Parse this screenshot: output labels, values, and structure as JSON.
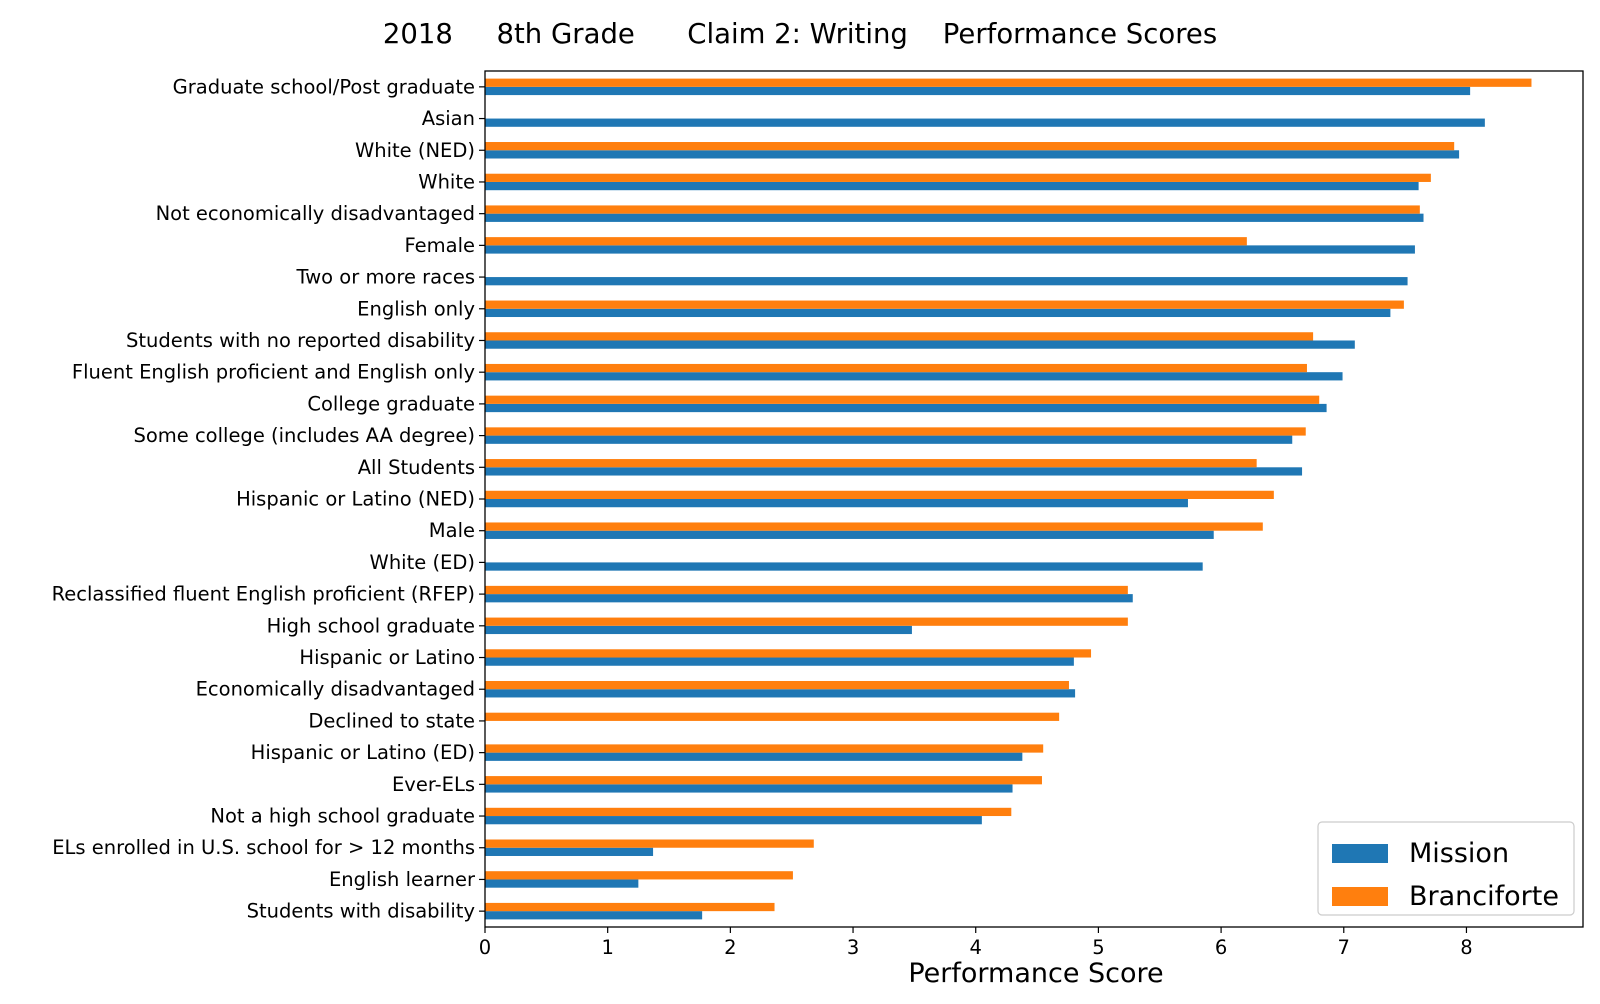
{
  "chart_data": {
    "type": "bar",
    "orientation": "horizontal",
    "title": "2018     8th Grade      Claim 2: Writing    Performance Scores",
    "xlabel": "Performance Score",
    "ylabel": "",
    "xlim": [
      0,
      8.95
    ],
    "xticks": [
      0,
      1,
      2,
      3,
      4,
      5,
      6,
      7,
      8
    ],
    "grid": false,
    "legend_position": "bottom-right",
    "categories": [
      "Graduate school/Post graduate",
      "Asian",
      "White (NED)",
      "White",
      "Not economically disadvantaged",
      "Female",
      "Two or more races",
      "English only",
      "Students with no reported disability",
      "Fluent English proficient and English only",
      "College graduate",
      "Some college (includes AA degree)",
      "All Students",
      "Hispanic or Latino (NED)",
      "Male",
      "White (ED)",
      "Reclassified fluent English proficient (RFEP)",
      "High school graduate",
      "Hispanic or Latino",
      "Economically disadvantaged",
      "Declined to state",
      "Hispanic or Latino (ED)",
      "Ever-ELs",
      "Not a high school graduate",
      "ELs enrolled in U.S. school for > 12 months",
      "English learner",
      "Students with disability"
    ],
    "series": [
      {
        "name": "Mission",
        "color": "#1f77b4",
        "values": [
          8.03,
          8.15,
          7.94,
          7.61,
          7.65,
          7.58,
          7.52,
          7.38,
          7.09,
          6.99,
          6.86,
          6.58,
          6.66,
          5.73,
          5.94,
          5.85,
          5.28,
          3.48,
          4.8,
          4.81,
          null,
          4.38,
          4.3,
          4.05,
          1.37,
          1.25,
          1.77
        ]
      },
      {
        "name": "Branciforte",
        "color": "#ff7f0e",
        "values": [
          8.53,
          null,
          7.9,
          7.71,
          7.62,
          6.21,
          null,
          7.49,
          6.75,
          6.7,
          6.8,
          6.69,
          6.29,
          6.43,
          6.34,
          null,
          5.24,
          5.24,
          4.94,
          4.76,
          4.68,
          4.55,
          4.54,
          4.29,
          2.68,
          2.51,
          2.36
        ]
      }
    ]
  }
}
